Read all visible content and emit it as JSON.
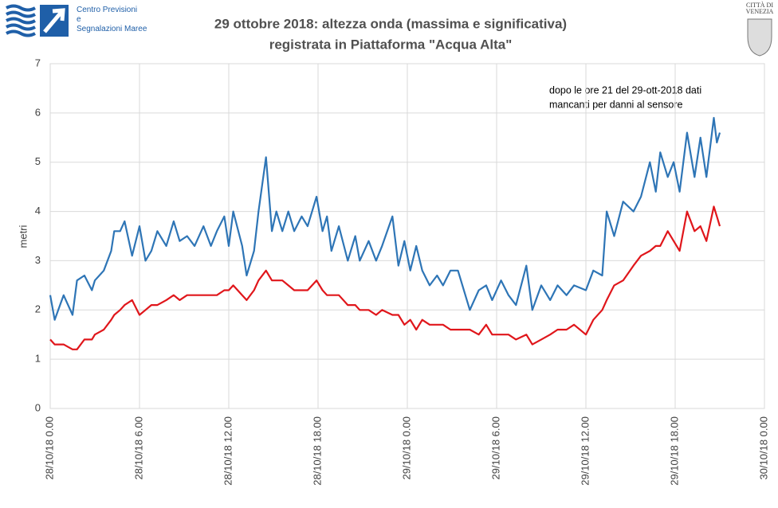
{
  "logo": {
    "lines": [
      "Centro Previsioni",
      "e",
      "Segnalazioni Maree"
    ],
    "city": [
      "CITTÀ DI",
      "VENEZIA"
    ]
  },
  "chart_data": {
    "type": "line",
    "title": [
      "29 ottobre  2018: altezza onda  (massima  e significativa)",
      "registrata  in  Piattaforma  \"Acqua Alta\""
    ],
    "y_label": "metri",
    "annotation": [
      "dopo le ore 21 del 29-ott-2018 dati",
      "mancanti per danni al sensore"
    ],
    "grid": true,
    "xlim": [
      0,
      48
    ],
    "xticks": [
      {
        "value": 0,
        "label": "28/10/18 0.00"
      },
      {
        "value": 6,
        "label": "28/10/18 6.00"
      },
      {
        "value": 12,
        "label": "28/10/18 12.00"
      },
      {
        "value": 18,
        "label": "28/10/18 18.00"
      },
      {
        "value": 24,
        "label": "29/10/18 0.00"
      },
      {
        "value": 30,
        "label": "29/10/18 6.00"
      },
      {
        "value": 36,
        "label": "29/10/18 12.00"
      },
      {
        "value": 42,
        "label": "29/10/18 18.00"
      },
      {
        "value": 48,
        "label": "30/10/18 0.00"
      }
    ],
    "ylim": [
      0,
      7
    ],
    "yticks": [
      0,
      1,
      2,
      3,
      4,
      5,
      6,
      7
    ],
    "x": [
      0,
      0.3,
      0.9,
      1.5,
      1.8,
      2.3,
      2.8,
      3,
      3.6,
      4.1,
      4.3,
      4.7,
      5,
      5.5,
      6,
      6.4,
      6.8,
      7.2,
      7.8,
      8.3,
      8.7,
      9.2,
      9.7,
      10.3,
      10.8,
      11.2,
      11.7,
      12,
      12.3,
      12.9,
      13.2,
      13.7,
      14,
      14.5,
      14.9,
      15.2,
      15.6,
      16,
      16.4,
      16.9,
      17.3,
      17.9,
      18.3,
      18.6,
      18.9,
      19.4,
      20,
      20.5,
      20.8,
      21.4,
      21.9,
      22.3,
      23,
      23.4,
      23.8,
      24.2,
      24.6,
      25,
      25.5,
      26,
      26.4,
      26.9,
      27.4,
      28.2,
      28.8,
      29.3,
      29.7,
      30.3,
      30.8,
      31.3,
      32,
      32.4,
      33,
      33.6,
      34.1,
      34.7,
      35.2,
      36,
      36.5,
      37.1,
      37.4,
      37.9,
      38.5,
      39.2,
      39.7,
      40.3,
      40.7,
      41,
      41.5,
      41.9,
      42.3,
      42.8,
      43.3,
      43.7,
      44.1,
      44.6,
      44.8,
      45
    ],
    "series": [
      {
        "color": "#2e75b6",
        "values": [
          2.3,
          1.8,
          2.3,
          1.9,
          2.6,
          2.7,
          2.4,
          2.6,
          2.8,
          3.2,
          3.6,
          3.6,
          3.8,
          3.1,
          3.7,
          3.0,
          3.2,
          3.6,
          3.3,
          3.8,
          3.4,
          3.5,
          3.3,
          3.7,
          3.3,
          3.6,
          3.9,
          3.3,
          4.0,
          3.3,
          2.7,
          3.2,
          4.0,
          5.1,
          3.6,
          4.0,
          3.6,
          4.0,
          3.6,
          3.9,
          3.7,
          4.3,
          3.6,
          3.9,
          3.2,
          3.7,
          3.0,
          3.5,
          3.0,
          3.4,
          3.0,
          3.3,
          3.9,
          2.9,
          3.4,
          2.8,
          3.3,
          2.8,
          2.5,
          2.7,
          2.5,
          2.8,
          2.8,
          2.0,
          2.4,
          2.5,
          2.2,
          2.6,
          2.3,
          2.1,
          2.9,
          2.0,
          2.5,
          2.2,
          2.5,
          2.3,
          2.5,
          2.4,
          2.8,
          2.7,
          4.0,
          3.5,
          4.2,
          4.0,
          4.3,
          5.0,
          4.4,
          5.2,
          4.7,
          5.0,
          4.4,
          5.6,
          4.7,
          5.5,
          4.7,
          5.9,
          5.4,
          5.6
        ]
      },
      {
        "color": "#e0161b",
        "values": [
          1.4,
          1.3,
          1.3,
          1.2,
          1.2,
          1.4,
          1.4,
          1.5,
          1.6,
          1.8,
          1.9,
          2.0,
          2.1,
          2.2,
          1.9,
          2.0,
          2.1,
          2.1,
          2.2,
          2.3,
          2.2,
          2.3,
          2.3,
          2.3,
          2.3,
          2.3,
          2.4,
          2.4,
          2.5,
          2.3,
          2.2,
          2.4,
          2.6,
          2.8,
          2.6,
          2.6,
          2.6,
          2.5,
          2.4,
          2.4,
          2.4,
          2.6,
          2.4,
          2.3,
          2.3,
          2.3,
          2.1,
          2.1,
          2.0,
          2.0,
          1.9,
          2.0,
          1.9,
          1.9,
          1.7,
          1.8,
          1.6,
          1.8,
          1.7,
          1.7,
          1.7,
          1.6,
          1.6,
          1.6,
          1.5,
          1.7,
          1.5,
          1.5,
          1.5,
          1.4,
          1.5,
          1.3,
          1.4,
          1.5,
          1.6,
          1.6,
          1.7,
          1.5,
          1.8,
          2.0,
          2.2,
          2.5,
          2.6,
          2.9,
          3.1,
          3.2,
          3.3,
          3.3,
          3.6,
          3.4,
          3.2,
          4.0,
          3.6,
          3.7,
          3.4,
          4.1,
          3.9,
          3.7
        ]
      }
    ]
  }
}
